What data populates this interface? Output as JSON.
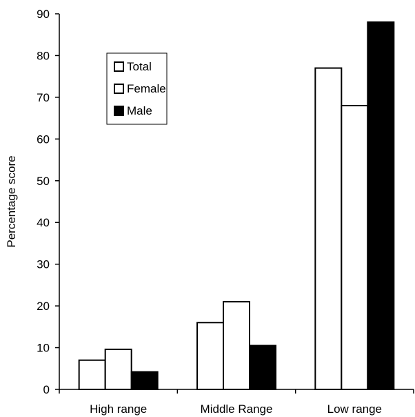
{
  "chart_data": {
    "type": "bar",
    "title": "",
    "xlabel": "",
    "ylabel": "Percentage score",
    "ylim": [
      0,
      90
    ],
    "yticks": [
      0,
      10,
      20,
      30,
      40,
      50,
      60,
      70,
      80,
      90
    ],
    "grid": false,
    "legend_position": "top-left",
    "categories": [
      "High range",
      "Middle Range",
      "Low range"
    ],
    "series": [
      {
        "name": "Total",
        "values": [
          7,
          16,
          77
        ],
        "fill": "#ffffff"
      },
      {
        "name": "Female",
        "values": [
          9.6,
          21,
          68
        ],
        "fill": "#ffffff"
      },
      {
        "name": "Male",
        "values": [
          4.2,
          10.5,
          88
        ],
        "fill": "#000000"
      }
    ]
  }
}
